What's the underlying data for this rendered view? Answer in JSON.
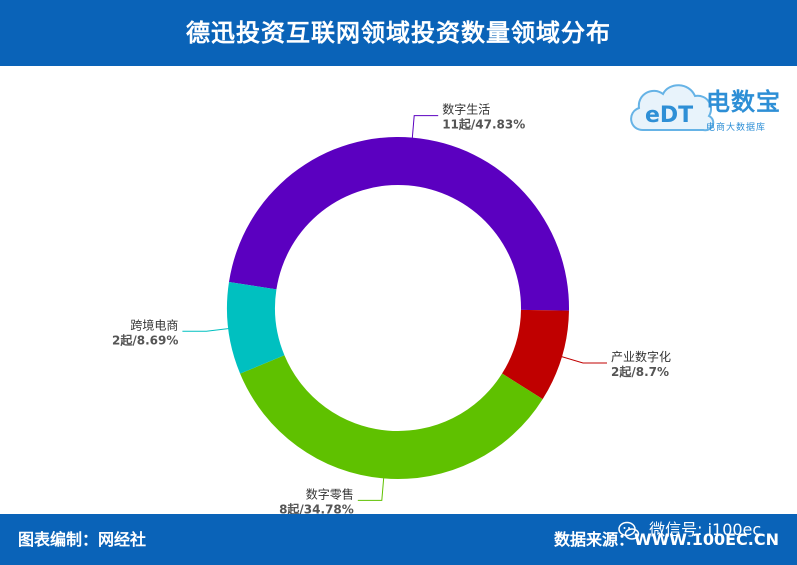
{
  "header": {
    "title": "德迅投资互联网领域投资数量领域分布"
  },
  "footer": {
    "left": "图表编制：网经社",
    "right": "数据来源：WWW.100EC.CN",
    "wechat": "微信号: i100ec"
  },
  "logo": {
    "name": "电数宝",
    "sub": "电商大数据库",
    "mark": "eDT"
  },
  "colors": {
    "brand_blue": "#0a63b8"
  },
  "chart_data": {
    "type": "pie",
    "title": "德迅投资互联网领域投资数量领域分布",
    "variant": "donut",
    "categories": [
      "数字生活",
      "产业数字化",
      "数字零售",
      "跨境电商"
    ],
    "values": [
      11,
      2,
      8,
      2
    ],
    "percent_labels": [
      "47.83%",
      "8.7%",
      "34.78%",
      "8.69%"
    ],
    "value_labels": [
      "11起/47.83%",
      "2起/8.7%",
      "8起/34.78%",
      "2起/8.69%"
    ],
    "colors": [
      "#5b00c0",
      "#c00000",
      "#5fc100",
      "#00c0c0"
    ],
    "legend": "none"
  }
}
